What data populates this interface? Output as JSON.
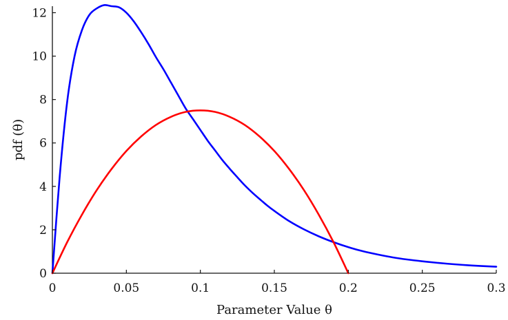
{
  "chart_data": {
    "type": "line",
    "xlabel": "Parameter Value θ",
    "ylabel": "pdf (θ)",
    "xlim": [
      0,
      0.3
    ],
    "ylim": [
      0,
      12.3
    ],
    "x_ticks": [
      "0",
      "0.05",
      "0.1",
      "0.15",
      "0.2",
      "0.25",
      "0.3"
    ],
    "y_ticks": [
      "0",
      "2",
      "4",
      "6",
      "8",
      "10",
      "12"
    ],
    "grid": false,
    "series": [
      {
        "color": "#0000ff",
        "x": [
          0,
          0.005,
          0.01,
          0.015,
          0.02,
          0.025,
          0.03,
          0.035,
          0.04,
          0.045,
          0.05,
          0.055,
          0.06,
          0.065,
          0.07,
          0.075,
          0.08,
          0.085,
          0.09,
          0.095,
          0.1,
          0.105,
          0.11,
          0.115,
          0.12,
          0.125,
          0.13,
          0.135,
          0.14,
          0.145,
          0.15,
          0.16,
          0.17,
          0.18,
          0.19,
          0.2,
          0.21,
          0.22,
          0.23,
          0.24,
          0.25,
          0.26,
          0.27,
          0.28,
          0.29,
          0.3
        ],
        "values": [
          0,
          4.5,
          7.9,
          10.0,
          11.2,
          11.9,
          12.2,
          12.35,
          12.3,
          12.25,
          12.0,
          11.6,
          11.1,
          10.55,
          9.95,
          9.4,
          8.8,
          8.2,
          7.6,
          7.1,
          6.6,
          6.1,
          5.65,
          5.2,
          4.8,
          4.42,
          4.05,
          3.72,
          3.42,
          3.13,
          2.87,
          2.4,
          2.02,
          1.7,
          1.43,
          1.2,
          1.01,
          0.86,
          0.73,
          0.63,
          0.55,
          0.48,
          0.42,
          0.37,
          0.33,
          0.3
        ]
      },
      {
        "color": "#ff0000",
        "x": [
          0,
          0.01,
          0.02,
          0.03,
          0.04,
          0.05,
          0.06,
          0.07,
          0.08,
          0.09,
          0.1,
          0.11,
          0.12,
          0.13,
          0.14,
          0.15,
          0.16,
          0.17,
          0.18,
          0.19,
          0.2
        ],
        "values": [
          0,
          1.43,
          2.7,
          3.83,
          4.8,
          5.63,
          6.3,
          6.83,
          7.2,
          7.43,
          7.5,
          7.43,
          7.2,
          6.83,
          6.3,
          5.63,
          4.8,
          3.83,
          2.7,
          1.43,
          0
        ]
      }
    ]
  }
}
